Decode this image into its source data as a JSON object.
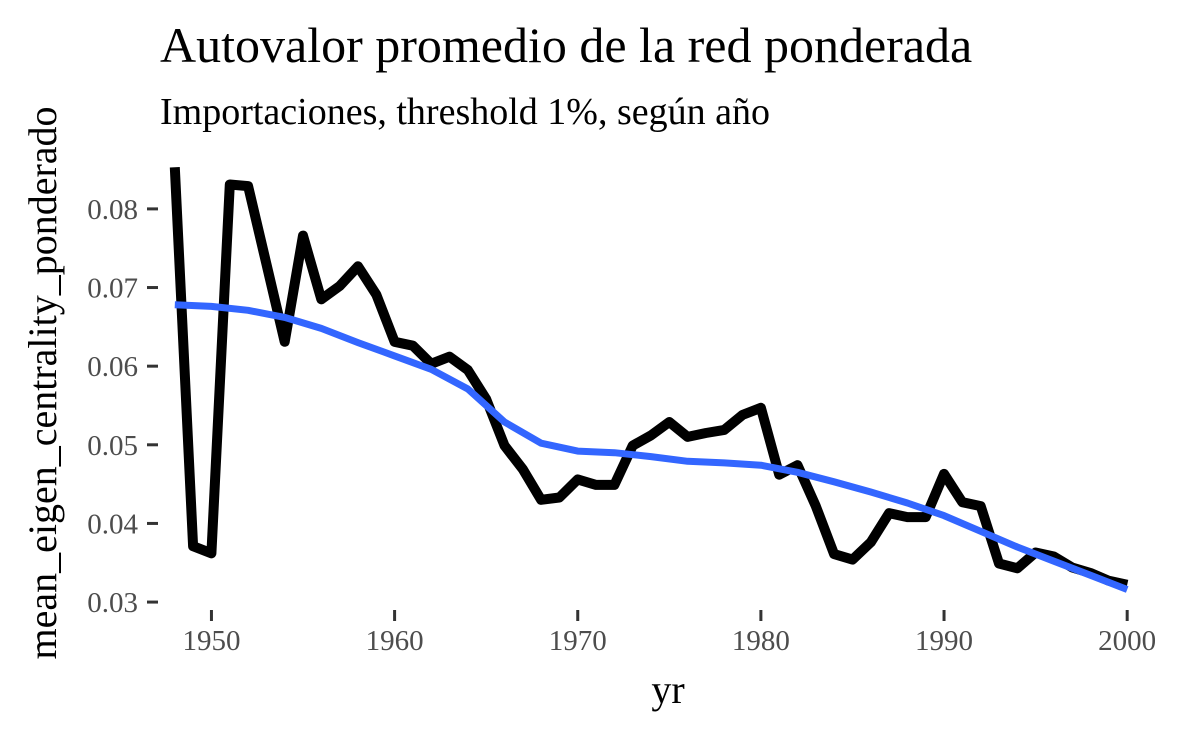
{
  "chart_data": {
    "type": "line",
    "title": "Autovalor promedio de la red ponderada",
    "subtitle": "Importaciones, threshold 1%, según año",
    "xlabel": "yr",
    "ylabel": "mean_eigen_centrality_ponderado",
    "xlim": [
      1947.3,
      2000.7
    ],
    "ylim": [
      0.0295,
      0.0866
    ],
    "x_ticks": [
      1950,
      1960,
      1970,
      1980,
      1990,
      2000
    ],
    "y_ticks": [
      0.03,
      0.04,
      0.05,
      0.06,
      0.07,
      0.08
    ],
    "x_tick_labels": [
      "1950",
      "1960",
      "1970",
      "1980",
      "1990",
      "2000"
    ],
    "y_tick_labels": [
      "0.03",
      "0.04",
      "0.05",
      "0.06",
      "0.07",
      "0.08"
    ],
    "grid": false,
    "series": [
      {
        "color": "#000000",
        "x": [
          1948,
          1949,
          1950,
          1951,
          1952,
          1953,
          1954,
          1955,
          1956,
          1957,
          1958,
          1959,
          1960,
          1961,
          1962,
          1963,
          1964,
          1965,
          1966,
          1967,
          1968,
          1969,
          1970,
          1971,
          1972,
          1973,
          1974,
          1975,
          1976,
          1977,
          1978,
          1979,
          1980,
          1981,
          1982,
          1983,
          1984,
          1985,
          1986,
          1987,
          1988,
          1989,
          1990,
          1991,
          1992,
          1993,
          1994,
          1995,
          1996,
          1997,
          1998,
          1999,
          2000
        ],
        "values": [
          0.0853,
          0.0371,
          0.0362,
          0.0831,
          0.0829,
          0.073,
          0.0631,
          0.0766,
          0.0685,
          0.0702,
          0.0727,
          0.0691,
          0.0631,
          0.0626,
          0.0603,
          0.0612,
          0.0595,
          0.0558,
          0.0499,
          0.0469,
          0.043,
          0.0433,
          0.0456,
          0.0449,
          0.0449,
          0.0499,
          0.0512,
          0.0529,
          0.051,
          0.0515,
          0.0519,
          0.0538,
          0.0547,
          0.0462,
          0.0474,
          0.0422,
          0.0361,
          0.0354,
          0.0376,
          0.0413,
          0.0408,
          0.0408,
          0.0463,
          0.0427,
          0.0422,
          0.0349,
          0.0343,
          0.0363,
          0.0358,
          0.0344,
          0.0337,
          0.0327,
          0.0322
        ]
      },
      {
        "color": "#3366FF",
        "x": [
          1948,
          1950,
          1952,
          1954,
          1956,
          1958,
          1960,
          1962,
          1964,
          1966,
          1968,
          1970,
          1972,
          1974,
          1976,
          1978,
          1980,
          1982,
          1984,
          1986,
          1988,
          1990,
          1992,
          1994,
          1996,
          1998,
          2000
        ],
        "values": [
          0.0678,
          0.0676,
          0.0671,
          0.0662,
          0.0648,
          0.063,
          0.0613,
          0.0596,
          0.0571,
          0.0529,
          0.0502,
          0.0492,
          0.049,
          0.0485,
          0.0479,
          0.0477,
          0.0474,
          0.0465,
          0.0453,
          0.044,
          0.0426,
          0.041,
          0.039,
          0.037,
          0.0352,
          0.0334,
          0.0316
        ]
      }
    ]
  }
}
